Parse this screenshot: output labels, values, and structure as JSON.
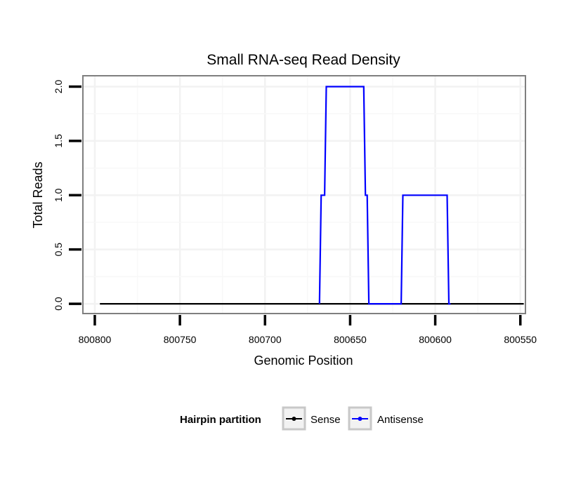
{
  "chart_data": {
    "type": "line",
    "title": "Small RNA-seq Read Density",
    "xlabel": "Genomic Position",
    "ylabel": "Total Reads",
    "xlim": [
      800807,
      800547
    ],
    "ylim": [
      -0.09,
      2.1
    ],
    "x_reversed": true,
    "x_ticks": [
      800800,
      800750,
      800700,
      800650,
      800600,
      800550
    ],
    "x_tick_labels": [
      "800800",
      "800750",
      "800700",
      "800650",
      "800600",
      "800550"
    ],
    "y_ticks": [
      0.0,
      0.5,
      1.0,
      1.5,
      2.0
    ],
    "y_tick_labels": [
      "0.0",
      "0.5",
      "1.0",
      "1.5",
      "2.0"
    ],
    "grid": true,
    "legend_position": "bottom",
    "legend": {
      "title": "Hairpin partition",
      "entries": [
        {
          "name": "Sense",
          "color": "#000000"
        },
        {
          "name": "Antisense",
          "color": "#0000ff"
        }
      ]
    },
    "series": [
      {
        "name": "Sense",
        "color": "#000000",
        "x": [
          800797,
          800548
        ],
        "y": [
          0,
          0
        ]
      },
      {
        "name": "Antisense",
        "color": "#0000ff",
        "x": [
          800668,
          800667,
          800666,
          800665,
          800664,
          800642,
          800641,
          800640,
          800639,
          800620,
          800619,
          800593,
          800592,
          800591
        ],
        "y": [
          0,
          1,
          1,
          1,
          2,
          2,
          1,
          1,
          0,
          0,
          1,
          1,
          0,
          0
        ]
      }
    ]
  }
}
